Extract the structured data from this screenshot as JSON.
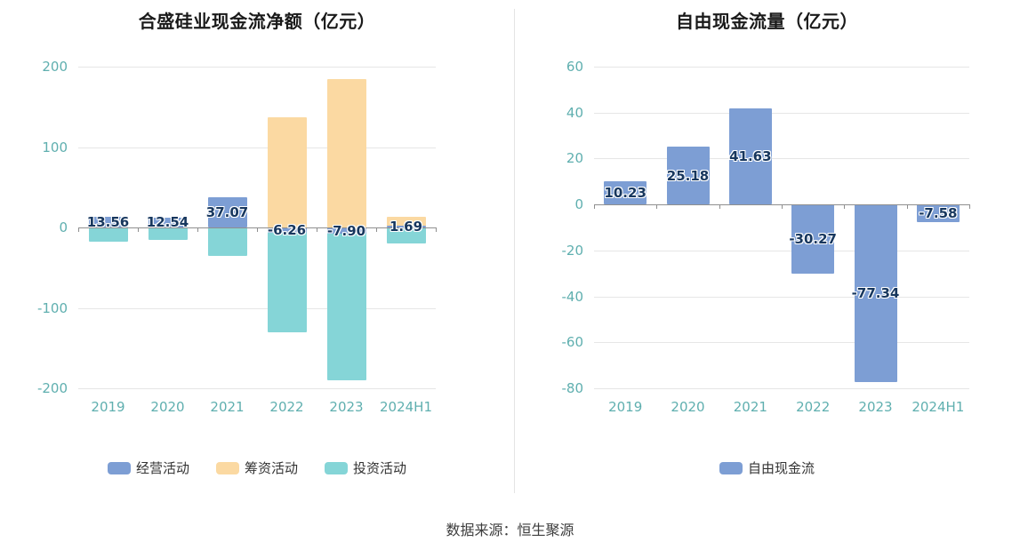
{
  "page": {
    "footer": "数据来源：恒生聚源"
  },
  "colors": {
    "operating_blue": "#7d9ed4",
    "financing_orange": "#fbd9a2",
    "investing_teal": "#85d5d7",
    "axis_text": "#5fafaf",
    "grid_line": "#e6e6e6",
    "zero_line": "#8f8f8f",
    "bar_label": "#17375e"
  },
  "chart_data": [
    {
      "type": "bar",
      "title": "合盛硅业现金流净额（亿元）",
      "categories": [
        "2019",
        "2020",
        "2021",
        "2022",
        "2023",
        "2024H1"
      ],
      "series": [
        {
          "name": "经营活动",
          "color": "#7d9ed4",
          "labeled": true,
          "values": [
            13.56,
            12.54,
            37.07,
            -6.26,
            -7.9,
            1.69
          ]
        },
        {
          "name": "筹资活动",
          "color": "#fbd9a2",
          "values": [
            0,
            0,
            0,
            137,
            185,
            13
          ]
        },
        {
          "name": "投资活动",
          "color": "#85d5d7",
          "values": [
            -18,
            -15,
            -35,
            -130,
            -190,
            -20
          ]
        }
      ],
      "labels": [
        "13.56",
        "12.54",
        "37.07",
        "-6.26",
        "-7.90",
        "1.69"
      ],
      "ylim": [
        -200,
        200
      ],
      "yticks": [
        200,
        100,
        0,
        -100,
        -200
      ],
      "grid": true,
      "legend_position": "bottom"
    },
    {
      "type": "bar",
      "title": "自由现金流量（亿元）",
      "categories": [
        "2019",
        "2020",
        "2021",
        "2022",
        "2023",
        "2024H1"
      ],
      "series": [
        {
          "name": "自由现金流",
          "color": "#7d9ed4",
          "labeled": true,
          "values": [
            10.23,
            25.18,
            41.63,
            -30.27,
            -77.34,
            -7.58
          ]
        }
      ],
      "labels": [
        "10.23",
        "25.18",
        "41.63",
        "-30.27",
        "-77.34",
        "-7.58"
      ],
      "ylim": [
        -80,
        60
      ],
      "yticks": [
        60,
        40,
        20,
        0,
        -20,
        -40,
        -60,
        -80
      ],
      "grid": true,
      "legend_position": "bottom"
    }
  ]
}
